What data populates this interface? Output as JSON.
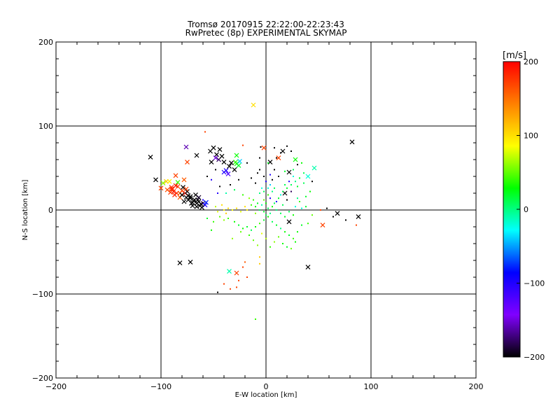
{
  "chart_data": {
    "type": "scatter",
    "title": "Tromsø 20170915 22:22:00-22:23:43",
    "subtitle": "RwPretec (8p) EXPERIMENTAL SKYMAP",
    "xlabel": "E-W location [km]",
    "ylabel": "N-S location [km]",
    "xlim": [
      -200,
      200
    ],
    "ylim": [
      -200,
      200
    ],
    "x_ticks": [
      -200,
      -100,
      0,
      100,
      200
    ],
    "y_ticks": [
      -200,
      -100,
      0,
      100,
      200
    ],
    "x_tick_labels": [
      "−200",
      "−100",
      "0",
      "100",
      "200"
    ],
    "y_tick_labels": [
      "−200",
      "−100",
      "0",
      "100",
      "200"
    ],
    "grid": true,
    "colorbar": {
      "label": "[m/s]",
      "range": [
        -200,
        200
      ],
      "ticks": [
        200,
        100,
        0,
        -100,
        -200
      ],
      "tick_labels": [
        "200",
        "100",
        "0",
        "−100",
        "−200"
      ],
      "colors": [
        "#000000",
        "#8000ff",
        "#0000ff",
        "#00ffff",
        "#00ff00",
        "#ffff00",
        "#ff8000",
        "#ff0000"
      ]
    },
    "series": [
      {
        "marker": "x",
        "points": [
          [
            -110,
            63,
            -200
          ],
          [
            -105,
            36,
            -200
          ],
          [
            -100,
            26,
            170
          ],
          [
            -98,
            32,
            60
          ],
          [
            -95,
            34,
            110
          ],
          [
            -92,
            34,
            90
          ],
          [
            -90,
            27,
            180
          ],
          [
            -88,
            22,
            190
          ],
          [
            -86,
            41,
            170
          ],
          [
            -84,
            33,
            40
          ],
          [
            -82,
            20,
            150
          ],
          [
            -80,
            23,
            170
          ],
          [
            -78,
            36,
            160
          ],
          [
            -77,
            20,
            190
          ],
          [
            -76,
            15,
            -200
          ],
          [
            -74,
            12,
            -200
          ],
          [
            -72,
            16,
            -200
          ],
          [
            -70,
            9,
            -200
          ],
          [
            -68,
            12,
            -200
          ],
          [
            -66,
            8,
            -200
          ],
          [
            -64,
            10,
            -200
          ],
          [
            -63,
            5,
            -200
          ],
          [
            -60,
            8,
            -180
          ],
          [
            -58,
            6,
            -100
          ],
          [
            -57,
            9,
            -80
          ],
          [
            -75,
            22,
            -200
          ],
          [
            -78,
            10,
            -200
          ],
          [
            -70,
            5,
            -200
          ],
          [
            -65,
            12,
            -200
          ],
          [
            -67,
            18,
            -200
          ],
          [
            -62,
            7,
            -200
          ],
          [
            -72,
            14,
            -200
          ],
          [
            -69,
            11,
            -200
          ],
          [
            -74,
            17,
            -200
          ],
          [
            -61,
            3,
            -200
          ],
          [
            -64,
            15,
            -190
          ],
          [
            -66,
            4,
            -200
          ],
          [
            -71,
            8,
            -200
          ],
          [
            -79,
            27,
            -200
          ],
          [
            -84,
            28,
            170
          ],
          [
            -89,
            25,
            180
          ],
          [
            -91,
            21,
            175
          ],
          [
            -94,
            24,
            165
          ],
          [
            -87,
            18,
            185
          ],
          [
            -85,
            20,
            180
          ],
          [
            -82,
            15,
            160
          ],
          [
            -80,
            18,
            -200
          ],
          [
            -76,
            25,
            170
          ],
          [
            -76,
            75,
            -160
          ],
          [
            -75,
            57,
            170
          ],
          [
            -66,
            65,
            -200
          ],
          [
            -53,
            70,
            -200
          ],
          [
            -50,
            74,
            -200
          ],
          [
            -47,
            66,
            -200
          ],
          [
            -45,
            60,
            -180
          ],
          [
            -44,
            72,
            -200
          ],
          [
            -42,
            64,
            -200
          ],
          [
            -40,
            57,
            -200
          ],
          [
            -38,
            47,
            -100
          ],
          [
            -40,
            45,
            -100
          ],
          [
            -36,
            43,
            -120
          ],
          [
            -35,
            52,
            -200
          ],
          [
            -33,
            56,
            -200
          ],
          [
            -30,
            48,
            -200
          ],
          [
            -52,
            57,
            -200
          ],
          [
            -48,
            62,
            -150
          ],
          [
            -28,
            55,
            30
          ],
          [
            -26,
            53,
            20
          ],
          [
            -28,
            65,
            30
          ],
          [
            -29,
            57,
            40
          ],
          [
            -25,
            58,
            -40
          ],
          [
            -12,
            125,
            100
          ],
          [
            -2,
            74,
            170
          ],
          [
            4,
            57,
            -200
          ],
          [
            12,
            62,
            170
          ],
          [
            16,
            70,
            -200
          ],
          [
            22,
            45,
            -200
          ],
          [
            28,
            60,
            30
          ],
          [
            40,
            40,
            -20
          ],
          [
            46,
            50,
            -10
          ],
          [
            18,
            20,
            -200
          ],
          [
            82,
            81,
            -200
          ],
          [
            88,
            -8,
            -200
          ],
          [
            68,
            -4,
            -200
          ],
          [
            54,
            -18,
            170
          ],
          [
            22,
            -14,
            -200
          ],
          [
            40,
            -68,
            -200
          ],
          [
            -35,
            -73,
            -10
          ],
          [
            -28,
            -75,
            170
          ],
          [
            -82,
            -63,
            -200
          ],
          [
            -72,
            -62,
            -200
          ],
          [
            -90,
            25,
            180
          ],
          [
            -86,
            29,
            190
          ]
        ]
      },
      {
        "marker": "dot",
        "points": [
          [
            -58,
            93,
            170
          ],
          [
            -22,
            77,
            170
          ],
          [
            -5,
            75,
            -200
          ],
          [
            8,
            74,
            -200
          ],
          [
            10,
            62,
            -200
          ],
          [
            14,
            68,
            -200
          ],
          [
            20,
            76,
            -200
          ],
          [
            24,
            70,
            -200
          ],
          [
            30,
            54,
            -200
          ],
          [
            18,
            46,
            20
          ],
          [
            34,
            56,
            30
          ],
          [
            36,
            44,
            10
          ],
          [
            26,
            40,
            -20
          ],
          [
            8,
            48,
            -200
          ],
          [
            12,
            40,
            -200
          ],
          [
            4,
            30,
            -40
          ],
          [
            6,
            22,
            0
          ],
          [
            2,
            18,
            40
          ],
          [
            -2,
            12,
            50
          ],
          [
            0,
            8,
            30
          ],
          [
            4,
            14,
            -100
          ],
          [
            8,
            26,
            10
          ],
          [
            10,
            10,
            -100
          ],
          [
            14,
            18,
            -20
          ],
          [
            16,
            6,
            10
          ],
          [
            20,
            12,
            -200
          ],
          [
            24,
            22,
            -180
          ],
          [
            28,
            4,
            -20
          ],
          [
            30,
            14,
            0
          ],
          [
            32,
            10,
            40
          ],
          [
            34,
            2,
            -20
          ],
          [
            38,
            16,
            20
          ],
          [
            -10,
            4,
            30
          ],
          [
            -6,
            0,
            10
          ],
          [
            -14,
            6,
            40
          ],
          [
            -18,
            0,
            90
          ],
          [
            -20,
            4,
            100
          ],
          [
            -24,
            -2,
            80
          ],
          [
            -28,
            2,
            100
          ],
          [
            -32,
            0,
            90
          ],
          [
            -36,
            2,
            100
          ],
          [
            -38,
            -4,
            110
          ],
          [
            -40,
            0,
            90
          ],
          [
            -42,
            6,
            100
          ],
          [
            -46,
            -2,
            80
          ],
          [
            -48,
            4,
            70
          ],
          [
            -44,
            -8,
            50
          ],
          [
            -40,
            -12,
            60
          ],
          [
            -36,
            -10,
            40
          ],
          [
            -30,
            -14,
            30
          ],
          [
            -26,
            -18,
            20
          ],
          [
            -22,
            -22,
            30
          ],
          [
            -18,
            -20,
            20
          ],
          [
            -14,
            -24,
            10
          ],
          [
            -10,
            -20,
            30
          ],
          [
            -6,
            -16,
            40
          ],
          [
            -2,
            -12,
            20
          ],
          [
            2,
            -8,
            30
          ],
          [
            6,
            -14,
            10
          ],
          [
            10,
            -18,
            20
          ],
          [
            14,
            -22,
            0
          ],
          [
            18,
            -26,
            30
          ],
          [
            22,
            -30,
            20
          ],
          [
            26,
            -34,
            40
          ],
          [
            30,
            -26,
            30
          ],
          [
            34,
            -18,
            20
          ],
          [
            12,
            -32,
            50
          ],
          [
            8,
            -38,
            60
          ],
          [
            4,
            -44,
            40
          ],
          [
            16,
            -40,
            30
          ],
          [
            20,
            -44,
            20
          ],
          [
            24,
            -46,
            50
          ],
          [
            28,
            -38,
            30
          ],
          [
            -16,
            -30,
            40
          ],
          [
            -24,
            -26,
            50
          ],
          [
            -32,
            -34,
            60
          ],
          [
            -50,
            -14,
            40
          ],
          [
            -52,
            -24,
            30
          ],
          [
            -56,
            -10,
            20
          ],
          [
            -4,
            -28,
            80
          ],
          [
            0,
            -34,
            70
          ],
          [
            -8,
            -42,
            60
          ],
          [
            -12,
            -36,
            50
          ],
          [
            36,
            32,
            10
          ],
          [
            30,
            28,
            20
          ],
          [
            22,
            34,
            -100
          ],
          [
            18,
            30,
            10
          ],
          [
            6,
            36,
            -200
          ],
          [
            -2,
            40,
            -200
          ],
          [
            -8,
            44,
            -200
          ],
          [
            -14,
            38,
            -200
          ],
          [
            -10,
            32,
            -200
          ],
          [
            -4,
            26,
            -20
          ],
          [
            -6,
            20,
            0
          ],
          [
            10,
            0,
            0
          ],
          [
            14,
            -4,
            10
          ],
          [
            18,
            -8,
            20
          ],
          [
            22,
            -2,
            10
          ],
          [
            26,
            -6,
            30
          ],
          [
            -2,
            -2,
            20
          ],
          [
            2,
            2,
            10
          ],
          [
            -4,
            6,
            -10
          ],
          [
            4,
            -4,
            0
          ],
          [
            0,
            -6,
            10
          ],
          [
            6,
            4,
            30
          ],
          [
            -8,
            8,
            20
          ],
          [
            8,
            8,
            10
          ],
          [
            -10,
            -4,
            60
          ],
          [
            -12,
            12,
            40
          ],
          [
            12,
            14,
            20
          ],
          [
            16,
            22,
            10
          ],
          [
            20,
            26,
            20
          ],
          [
            24,
            30,
            10
          ],
          [
            28,
            34,
            0
          ],
          [
            32,
            38,
            20
          ],
          [
            -2,
            22,
            10
          ],
          [
            2,
            26,
            -20
          ],
          [
            0,
            34,
            -100
          ],
          [
            4,
            42,
            -100
          ],
          [
            -6,
            48,
            -200
          ],
          [
            -26,
            36,
            -200
          ],
          [
            -34,
            30,
            -200
          ],
          [
            -44,
            28,
            -200
          ],
          [
            52,
            0,
            170
          ],
          [
            58,
            2,
            -200
          ],
          [
            64,
            -8,
            -200
          ],
          [
            76,
            -12,
            -200
          ],
          [
            86,
            -18,
            170
          ],
          [
            -6,
            -56,
            110
          ],
          [
            -6,
            -64,
            110
          ],
          [
            -20,
            -62,
            160
          ],
          [
            -22,
            -68,
            170
          ],
          [
            -26,
            -84,
            170
          ],
          [
            -28,
            -92,
            170
          ],
          [
            -34,
            -94,
            170
          ],
          [
            -40,
            -88,
            170
          ],
          [
            -46,
            -98,
            -200
          ],
          [
            -18,
            -80,
            170
          ],
          [
            -10,
            -130,
            40
          ],
          [
            -46,
            20,
            -100
          ],
          [
            -52,
            36,
            -100
          ],
          [
            -60,
            12,
            -100
          ],
          [
            44,
            34,
            -200
          ],
          [
            42,
            22,
            30
          ],
          [
            38,
            4,
            20
          ],
          [
            44,
            -6,
            50
          ],
          [
            40,
            -16,
            40
          ],
          [
            -38,
            20,
            -10
          ],
          [
            -30,
            24,
            10
          ],
          [
            -22,
            18,
            40
          ],
          [
            -16,
            14,
            60
          ],
          [
            2,
            56,
            20
          ],
          [
            -6,
            62,
            -200
          ],
          [
            -18,
            56,
            -200
          ],
          [
            26,
            48,
            10
          ],
          [
            -48,
            48,
            -200
          ],
          [
            -56,
            40,
            -200
          ]
        ]
      }
    ]
  }
}
